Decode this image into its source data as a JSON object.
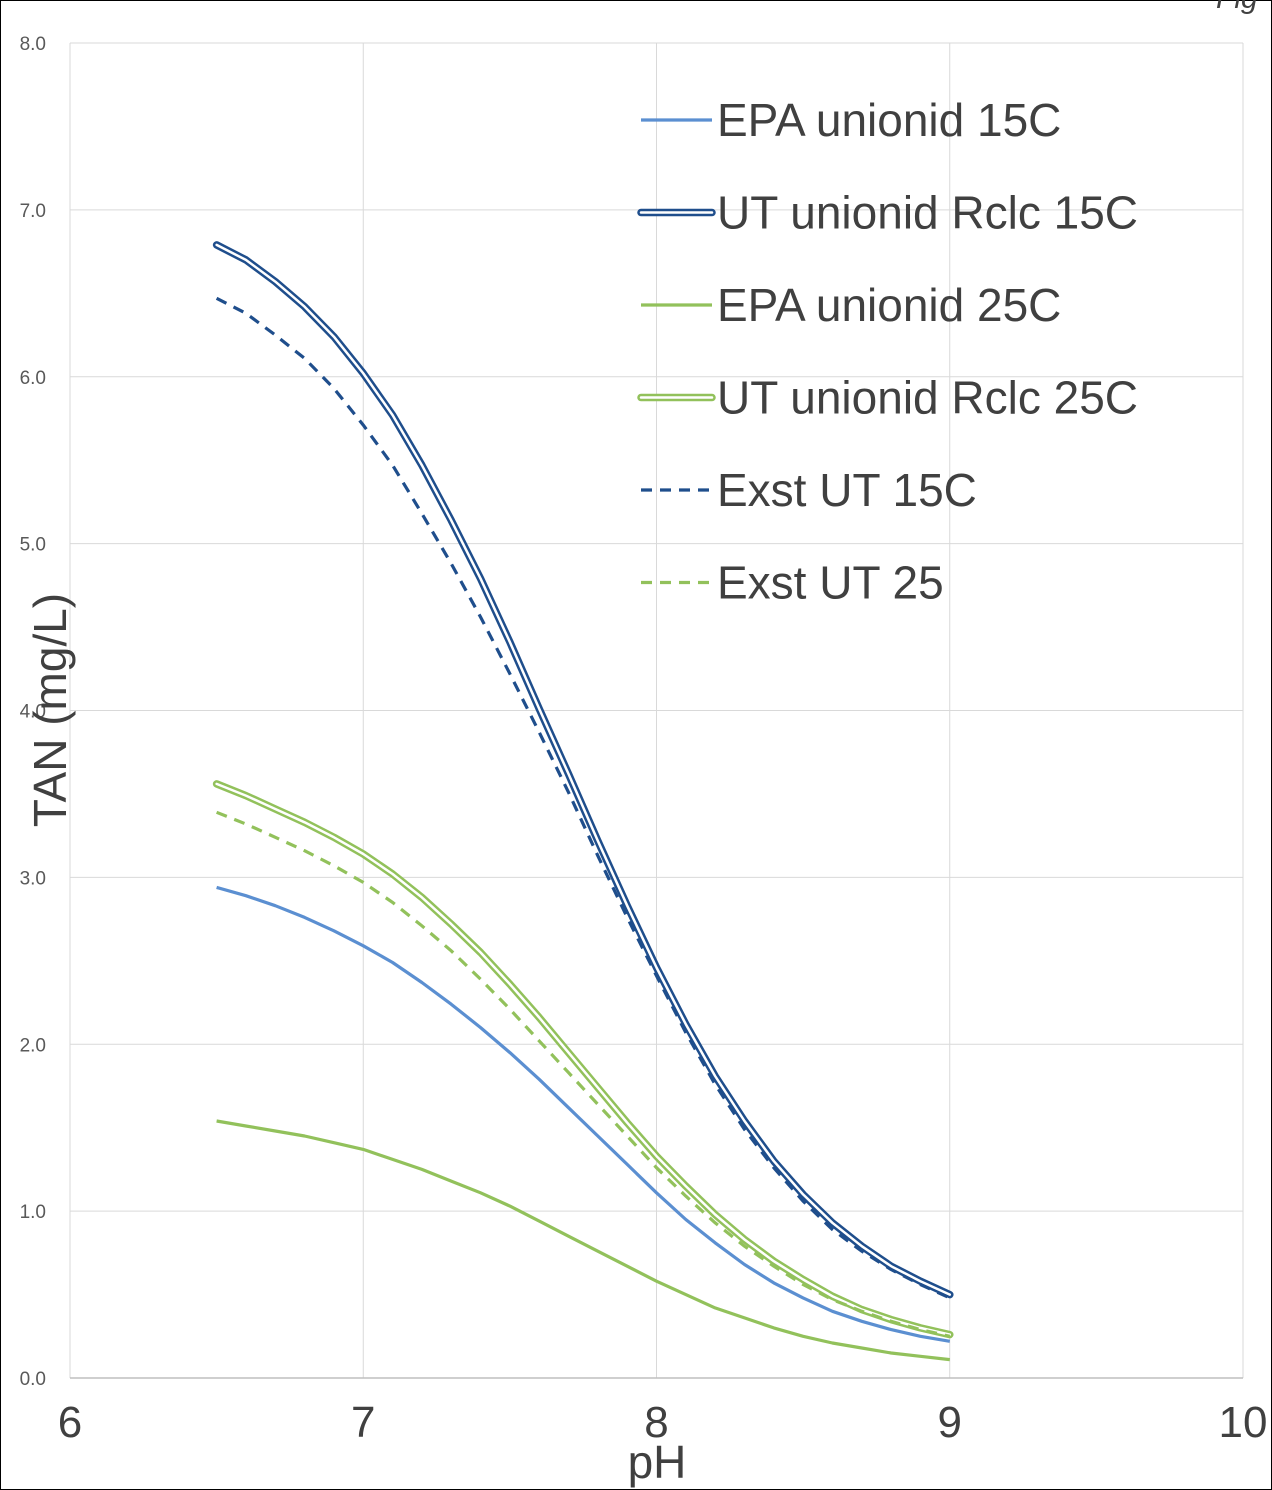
{
  "corner_text": "Fig",
  "chart_data": {
    "type": "line",
    "title": "",
    "xlabel": "pH",
    "ylabel": "TAN (mg/L)",
    "xlim": [
      6,
      10
    ],
    "ylim": [
      0,
      8
    ],
    "grid": true,
    "legend_position": "top-right",
    "x_ticks": [
      "6",
      "7",
      "8",
      "9",
      "10"
    ],
    "y_ticks": [
      "0.0",
      "1.0",
      "2.0",
      "3.0",
      "4.0",
      "5.0",
      "6.0",
      "7.0",
      "8.0"
    ],
    "x": [
      6.5,
      6.6,
      6.7,
      6.8,
      6.9,
      7.0,
      7.1,
      7.2,
      7.3,
      7.4,
      7.5,
      7.6,
      7.7,
      7.8,
      7.9,
      8.0,
      8.1,
      8.2,
      8.3,
      8.4,
      8.5,
      8.6,
      8.7,
      8.8,
      8.9,
      9.0
    ],
    "series": [
      {
        "name": "EPA unionid 15C",
        "color": "#5b8fd1",
        "style": "solid",
        "values": [
          2.94,
          2.89,
          2.83,
          2.76,
          2.68,
          2.59,
          2.49,
          2.37,
          2.24,
          2.1,
          1.95,
          1.79,
          1.62,
          1.45,
          1.28,
          1.11,
          0.95,
          0.81,
          0.68,
          0.57,
          0.48,
          0.4,
          0.34,
          0.29,
          0.25,
          0.22
        ]
      },
      {
        "name": "UT unionid Rclc 15C",
        "color": "#1f4e8c",
        "style": "double",
        "values": [
          6.79,
          6.7,
          6.57,
          6.42,
          6.24,
          6.02,
          5.77,
          5.47,
          5.14,
          4.79,
          4.41,
          4.01,
          3.62,
          3.22,
          2.83,
          2.46,
          2.12,
          1.81,
          1.54,
          1.3,
          1.1,
          0.93,
          0.79,
          0.67,
          0.58,
          0.5
        ]
      },
      {
        "name": "EPA unionid 25C",
        "color": "#92c15b",
        "style": "solid",
        "values": [
          1.54,
          1.51,
          1.48,
          1.45,
          1.41,
          1.37,
          1.31,
          1.25,
          1.18,
          1.11,
          1.03,
          0.94,
          0.85,
          0.76,
          0.67,
          0.58,
          0.5,
          0.42,
          0.36,
          0.3,
          0.25,
          0.21,
          0.18,
          0.15,
          0.13,
          0.11
        ]
      },
      {
        "name": "UT unionid Rclc 25C",
        "color": "#92c15b",
        "style": "double",
        "values": [
          3.56,
          3.49,
          3.41,
          3.33,
          3.24,
          3.14,
          3.02,
          2.88,
          2.72,
          2.55,
          2.36,
          2.16,
          1.95,
          1.74,
          1.53,
          1.33,
          1.15,
          0.98,
          0.83,
          0.7,
          0.59,
          0.49,
          0.41,
          0.35,
          0.3,
          0.26
        ]
      },
      {
        "name": "Exst UT 15C",
        "color": "#1f4e8c",
        "style": "dashed",
        "values": [
          6.47,
          6.38,
          6.25,
          6.11,
          5.93,
          5.71,
          5.47,
          5.18,
          4.88,
          4.56,
          4.22,
          3.87,
          3.51,
          3.13,
          2.76,
          2.41,
          2.07,
          1.76,
          1.49,
          1.26,
          1.06,
          0.89,
          0.76,
          0.65,
          0.56,
          0.48
        ]
      },
      {
        "name": "Exst UT 25",
        "color": "#92c15b",
        "style": "dashed",
        "values": [
          3.39,
          3.32,
          3.24,
          3.16,
          3.07,
          2.97,
          2.85,
          2.71,
          2.56,
          2.39,
          2.21,
          2.02,
          1.83,
          1.64,
          1.45,
          1.26,
          1.09,
          0.93,
          0.79,
          0.67,
          0.56,
          0.47,
          0.4,
          0.34,
          0.29,
          0.25
        ]
      }
    ]
  }
}
